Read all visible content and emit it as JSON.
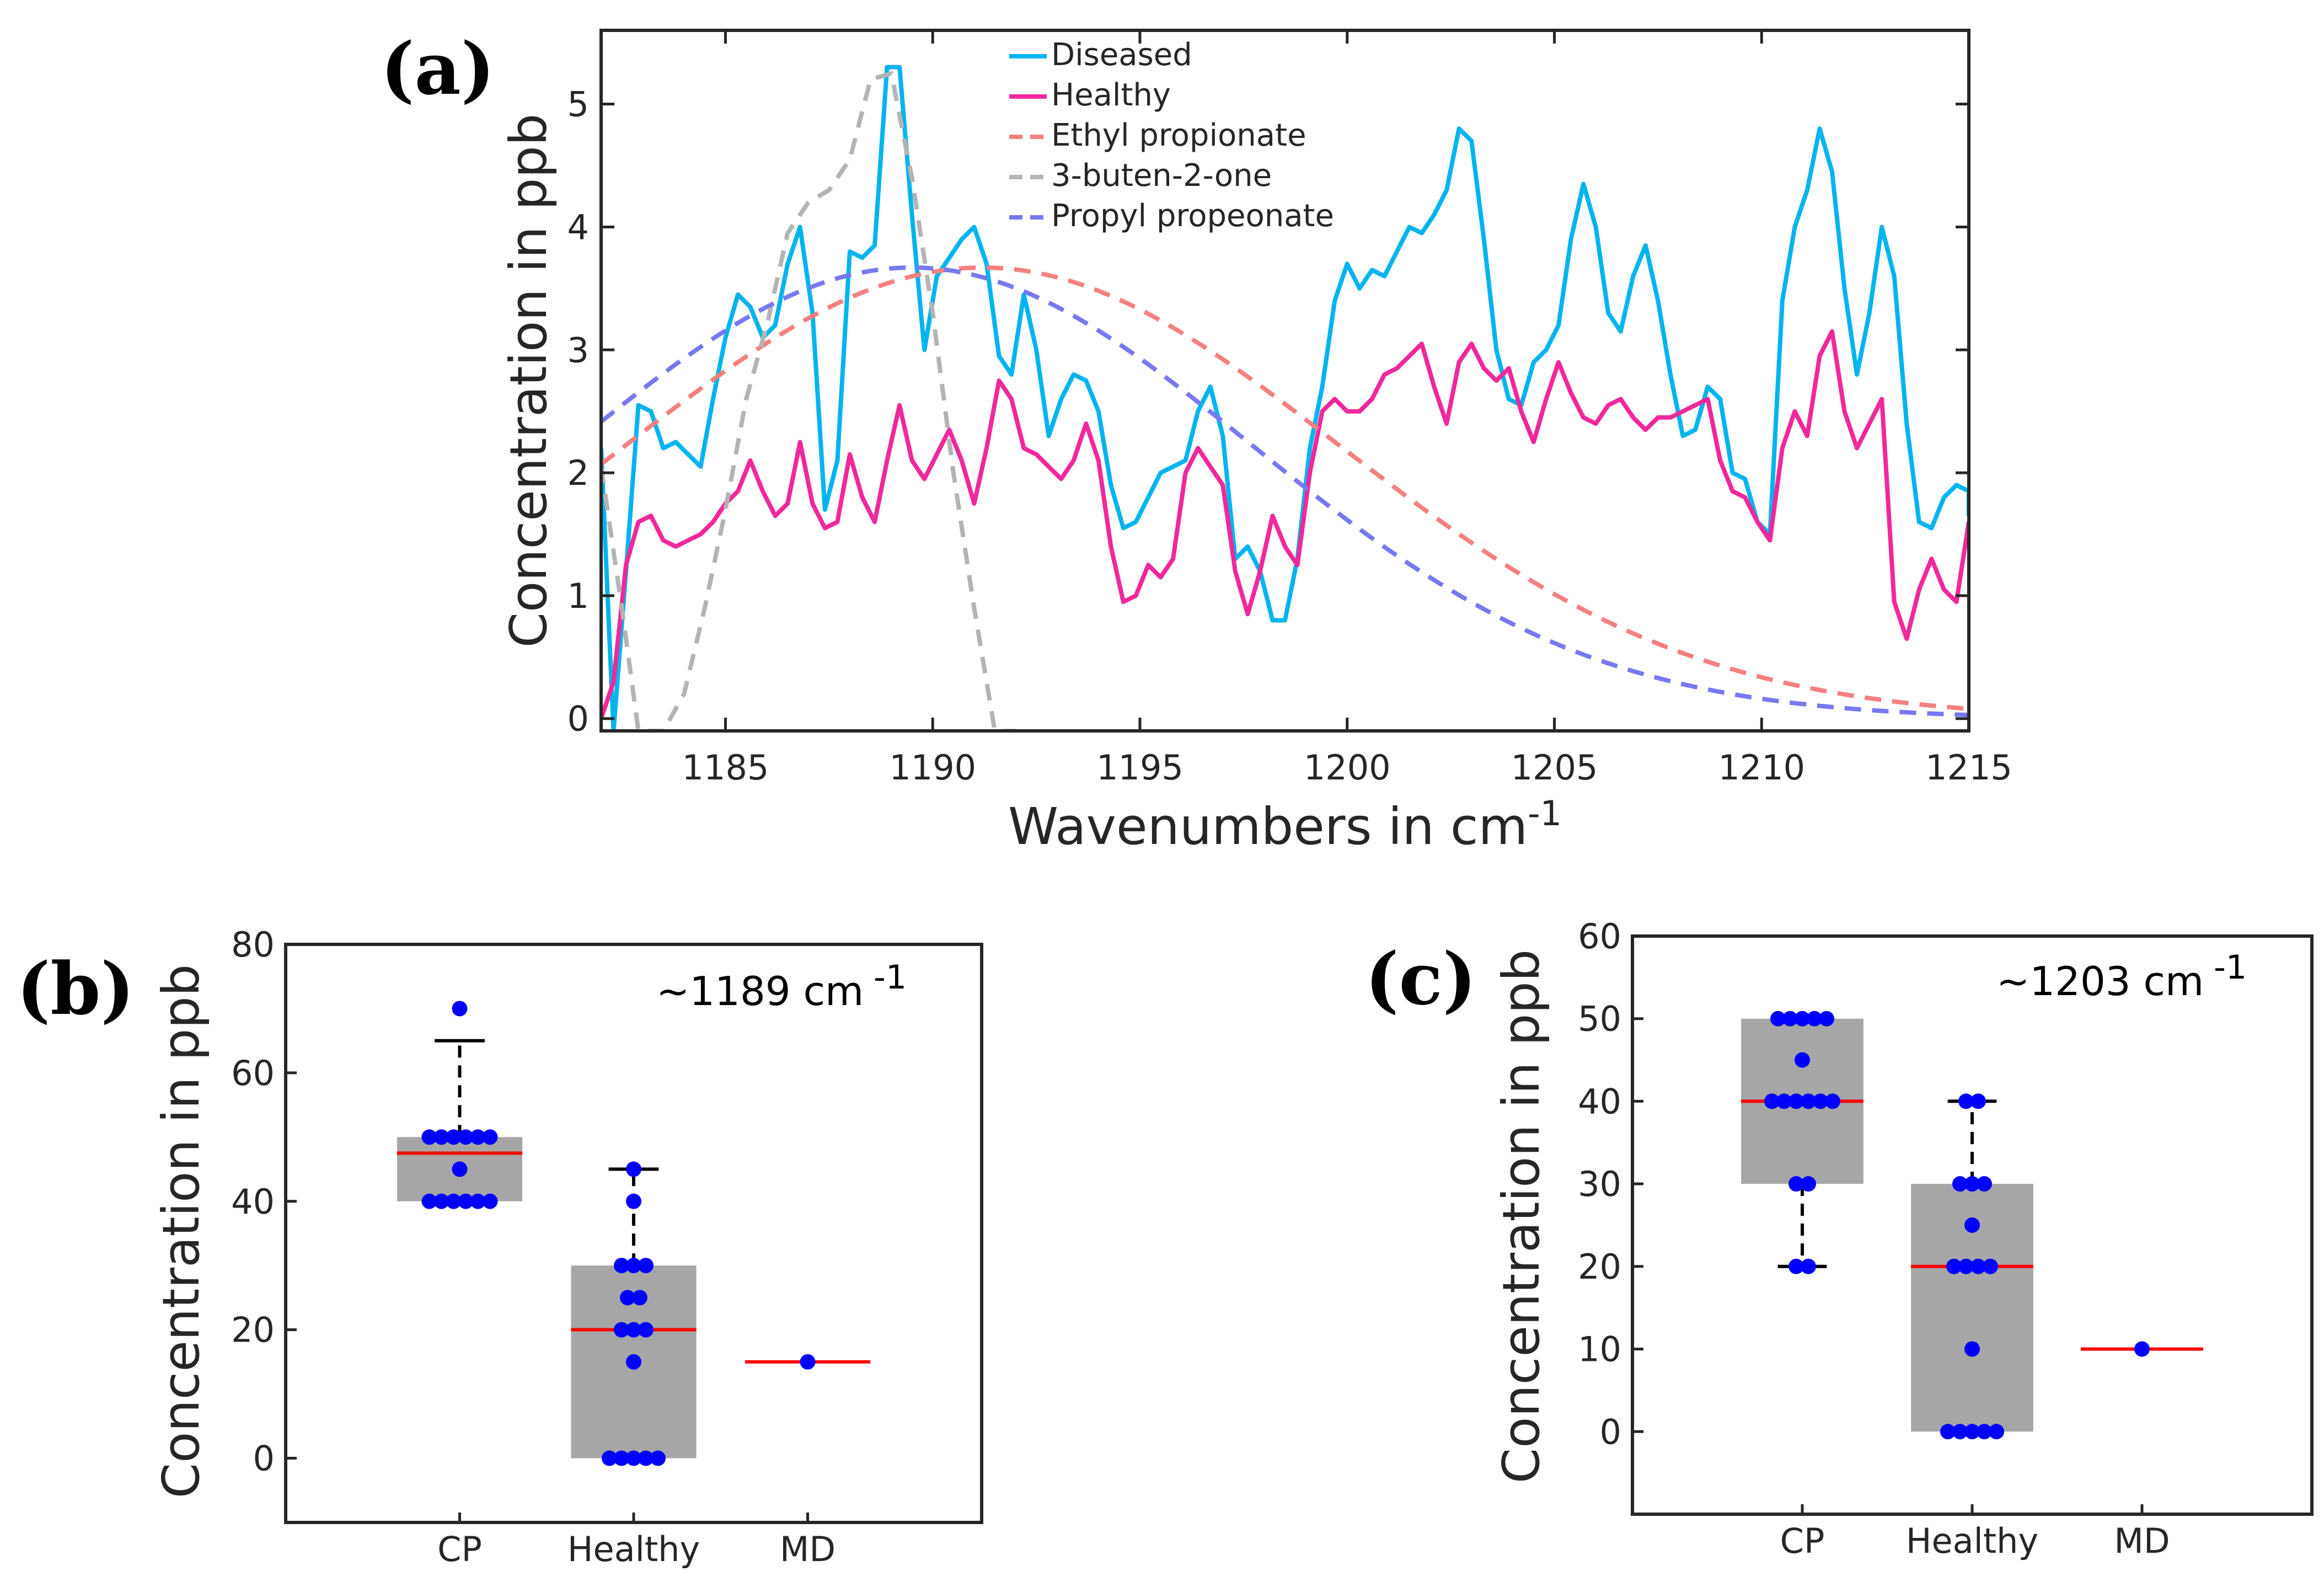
{
  "chart_data": [
    {
      "panel": "(a)",
      "type": "line",
      "xlabel": "Wavenumbers in cm",
      "xlabel_sup": "-1",
      "ylabel": "Concentration in ppb",
      "xlim": [
        1182,
        1215
      ],
      "ylim": [
        -0.1,
        5.6
      ],
      "xticks": [
        1185,
        1190,
        1195,
        1200,
        1205,
        1210,
        1215
      ],
      "yticks": [
        0,
        1,
        2,
        3,
        4,
        5
      ],
      "series": [
        {
          "name": "Diseased",
          "color": "#00b4f0",
          "dash": false,
          "x": [
            1182.0,
            1182.3,
            1182.6,
            1182.9,
            1183.2,
            1183.5,
            1183.8,
            1184.1,
            1184.4,
            1184.7,
            1185.0,
            1185.3,
            1185.6,
            1185.9,
            1186.2,
            1186.5,
            1186.8,
            1187.1,
            1187.4,
            1187.7,
            1188.0,
            1188.3,
            1188.6,
            1188.9,
            1189.2,
            1189.5,
            1189.8,
            1190.1,
            1190.4,
            1190.7,
            1191.0,
            1191.3,
            1191.6,
            1191.9,
            1192.2,
            1192.5,
            1192.8,
            1193.1,
            1193.4,
            1193.7,
            1194.0,
            1194.3,
            1194.6,
            1194.9,
            1195.2,
            1195.5,
            1195.8,
            1196.1,
            1196.4,
            1196.7,
            1197.0,
            1197.3,
            1197.6,
            1197.9,
            1198.2,
            1198.5,
            1198.8,
            1199.1,
            1199.4,
            1199.7,
            1200.0,
            1200.3,
            1200.6,
            1200.9,
            1201.2,
            1201.5,
            1201.8,
            1202.1,
            1202.4,
            1202.7,
            1203.0,
            1203.3,
            1203.6,
            1203.9,
            1204.2,
            1204.5,
            1204.8,
            1205.1,
            1205.4,
            1205.7,
            1206.0,
            1206.3,
            1206.6,
            1206.9,
            1207.2,
            1207.5,
            1207.8,
            1208.1,
            1208.4,
            1208.7,
            1209.0,
            1209.3,
            1209.6,
            1209.9,
            1210.2,
            1210.5,
            1210.8,
            1211.1,
            1211.4,
            1211.7,
            1212.0,
            1212.3,
            1212.6,
            1212.9,
            1213.2,
            1213.5,
            1213.8,
            1214.1,
            1214.4,
            1214.7,
            1215.0
          ],
          "y": [
            2.2,
            -0.1,
            1.2,
            2.55,
            2.5,
            2.2,
            2.25,
            2.15,
            2.05,
            2.6,
            3.1,
            3.45,
            3.35,
            3.1,
            3.2,
            3.7,
            4.0,
            3.3,
            1.7,
            2.1,
            3.8,
            3.75,
            3.85,
            5.3,
            5.3,
            4.1,
            3.0,
            3.6,
            3.75,
            3.9,
            4.0,
            3.7,
            2.95,
            2.8,
            3.45,
            3.0,
            2.3,
            2.6,
            2.8,
            2.75,
            2.5,
            1.9,
            1.55,
            1.6,
            1.8,
            2.0,
            2.05,
            2.1,
            2.5,
            2.7,
            2.3,
            1.3,
            1.4,
            1.2,
            0.8,
            0.8,
            1.3,
            2.2,
            2.7,
            3.4,
            3.7,
            3.5,
            3.65,
            3.6,
            3.8,
            4.0,
            3.95,
            4.1,
            4.3,
            4.8,
            4.7,
            3.9,
            3.0,
            2.6,
            2.55,
            2.9,
            3.0,
            3.2,
            3.9,
            4.35,
            4.0,
            3.3,
            3.15,
            3.6,
            3.85,
            3.4,
            2.8,
            2.3,
            2.35,
            2.7,
            2.6,
            2.0,
            1.95,
            1.6,
            1.5,
            3.4,
            4.0,
            4.3,
            4.8,
            4.45,
            3.5,
            2.8,
            3.3,
            4.0,
            3.6,
            2.4,
            1.6,
            1.55,
            1.8,
            1.9,
            1.85
          ],
          "x_tail": [
            1215.0
          ],
          "y_tail": [
            1.65
          ]
        },
        {
          "name": "Healthy",
          "color": "#f0289b",
          "dash": false,
          "x": [
            1182.0,
            1182.3,
            1182.6,
            1182.9,
            1183.2,
            1183.5,
            1183.8,
            1184.1,
            1184.4,
            1184.7,
            1185.0,
            1185.3,
            1185.6,
            1185.9,
            1186.2,
            1186.5,
            1186.8,
            1187.1,
            1187.4,
            1187.7,
            1188.0,
            1188.3,
            1188.6,
            1188.9,
            1189.2,
            1189.5,
            1189.8,
            1190.1,
            1190.4,
            1190.7,
            1191.0,
            1191.3,
            1191.6,
            1191.9,
            1192.2,
            1192.5,
            1192.8,
            1193.1,
            1193.4,
            1193.7,
            1194.0,
            1194.3,
            1194.6,
            1194.9,
            1195.2,
            1195.5,
            1195.8,
            1196.1,
            1196.4,
            1196.7,
            1197.0,
            1197.3,
            1197.6,
            1197.9,
            1198.2,
            1198.5,
            1198.8,
            1199.1,
            1199.4,
            1199.7,
            1200.0,
            1200.3,
            1200.6,
            1200.9,
            1201.2,
            1201.5,
            1201.8,
            1202.1,
            1202.4,
            1202.7,
            1203.0,
            1203.3,
            1203.6,
            1203.9,
            1204.2,
            1204.5,
            1204.8,
            1205.1,
            1205.4,
            1205.7,
            1206.0,
            1206.3,
            1206.6,
            1206.9,
            1207.2,
            1207.5,
            1207.8,
            1208.1,
            1208.4,
            1208.7,
            1209.0,
            1209.3,
            1209.6,
            1209.9,
            1210.2,
            1210.5,
            1210.8,
            1211.1,
            1211.4,
            1211.7,
            1212.0,
            1212.3,
            1212.6,
            1212.9,
            1213.2,
            1213.5,
            1213.8,
            1214.1,
            1214.4,
            1214.7,
            1215.0
          ],
          "y": [
            0.0,
            0.3,
            1.25,
            1.6,
            1.65,
            1.45,
            1.4,
            1.45,
            1.5,
            1.6,
            1.75,
            1.85,
            2.1,
            1.85,
            1.65,
            1.75,
            2.25,
            1.75,
            1.55,
            1.6,
            2.15,
            1.8,
            1.6,
            2.1,
            2.55,
            2.1,
            1.95,
            2.15,
            2.35,
            2.1,
            1.75,
            2.2,
            2.75,
            2.6,
            2.2,
            2.15,
            2.05,
            1.95,
            2.1,
            2.4,
            2.1,
            1.4,
            0.95,
            1.0,
            1.25,
            1.15,
            1.3,
            2.0,
            2.2,
            2.05,
            1.9,
            1.2,
            0.85,
            1.2,
            1.65,
            1.4,
            1.25,
            2.0,
            2.5,
            2.6,
            2.5,
            2.5,
            2.6,
            2.8,
            2.85,
            2.95,
            3.05,
            2.7,
            2.4,
            2.9,
            3.05,
            2.85,
            2.75,
            2.85,
            2.5,
            2.25,
            2.6,
            2.9,
            2.65,
            2.45,
            2.4,
            2.55,
            2.6,
            2.45,
            2.35,
            2.45,
            2.45,
            2.5,
            2.55,
            2.6,
            2.1,
            1.85,
            1.8,
            1.6,
            1.45,
            2.2,
            2.5,
            2.3,
            2.95,
            3.15,
            2.5,
            2.2,
            2.4,
            2.6,
            0.95,
            0.65,
            1.05,
            1.3,
            1.05,
            0.95,
            1.6
          ]
        },
        {
          "name": "Ethyl propionate",
          "color": "#f58080",
          "dash": true,
          "peak": 3.67,
          "mu": 1191.2,
          "sigma": 8.6
        },
        {
          "name": "3-buten-2-one",
          "color": "#b4b4b4",
          "dash": true,
          "x": [
            1182.0,
            1182.5,
            1182.9,
            1183.0,
            1183.5,
            1184.0,
            1184.5,
            1185.0,
            1185.5,
            1186.0,
            1186.5,
            1187.0,
            1187.5,
            1188.0,
            1188.5,
            1189.0,
            1189.5,
            1190.0,
            1190.5,
            1191.0,
            1191.5,
            1192.0
          ],
          "y": [
            2.05,
            0.9,
            -0.1,
            -0.1,
            -0.1,
            0.2,
            0.9,
            1.7,
            2.6,
            3.2,
            3.95,
            4.2,
            4.3,
            4.55,
            5.2,
            5.25,
            4.4,
            3.3,
            2.0,
            0.9,
            -0.1,
            -0.1
          ]
        },
        {
          "name": "Propyl propeonate",
          "color": "#7878f0",
          "dash": true,
          "peak": 3.67,
          "mu": 1189.5,
          "sigma": 8.2
        }
      ]
    },
    {
      "panel": "(b)",
      "type": "box",
      "annotation": "~1189 cm",
      "annotation_sup": "-1",
      "ylabel": "Concentration in ppb",
      "ylim": [
        -10,
        80
      ],
      "yticks": [
        0,
        20,
        40,
        60,
        80
      ],
      "categories": [
        "CP",
        "Healthy",
        "MD"
      ],
      "boxes": [
        {
          "name": "CP",
          "q1": 40,
          "median": 47.5,
          "q3": 50,
          "whisker_low": 40,
          "whisker_high": 65,
          "points": [
            70,
            50,
            50,
            50,
            50,
            50,
            50,
            45,
            40,
            40,
            40,
            40,
            40,
            40
          ]
        },
        {
          "name": "Healthy",
          "q1": 0,
          "median": 20,
          "q3": 30,
          "whisker_low": 0,
          "whisker_high": 45,
          "points": [
            45,
            40,
            30,
            30,
            30,
            25,
            25,
            20,
            20,
            20,
            15,
            0,
            0,
            0,
            0,
            0
          ]
        },
        {
          "name": "MD",
          "q1": 15,
          "median": 15,
          "q3": 15,
          "whisker_low": 15,
          "whisker_high": 15,
          "points": [
            15
          ]
        }
      ]
    },
    {
      "panel": "(c)",
      "type": "box",
      "annotation": "~1203 cm",
      "annotation_sup": "-1",
      "ylabel": "Concentration in ppb",
      "ylim": [
        -10,
        60
      ],
      "yticks": [
        0,
        10,
        20,
        30,
        40,
        50,
        60
      ],
      "categories": [
        "CP",
        "Healthy",
        "MD"
      ],
      "boxes": [
        {
          "name": "CP",
          "q1": 30,
          "median": 40,
          "q3": 50,
          "whisker_low": 20,
          "whisker_high": 50,
          "points": [
            50,
            50,
            50,
            50,
            50,
            45,
            40,
            40,
            40,
            40,
            40,
            40,
            30,
            30,
            20,
            20
          ]
        },
        {
          "name": "Healthy",
          "q1": 0,
          "median": 20,
          "q3": 30,
          "whisker_low": 0,
          "whisker_high": 40,
          "points": [
            40,
            40,
            30,
            30,
            30,
            25,
            20,
            20,
            20,
            20,
            10,
            0,
            0,
            0,
            0,
            0
          ]
        },
        {
          "name": "MD",
          "q1": 10,
          "median": 10,
          "q3": 10,
          "whisker_low": 10,
          "whisker_high": 10,
          "points": [
            10
          ]
        }
      ]
    }
  ]
}
